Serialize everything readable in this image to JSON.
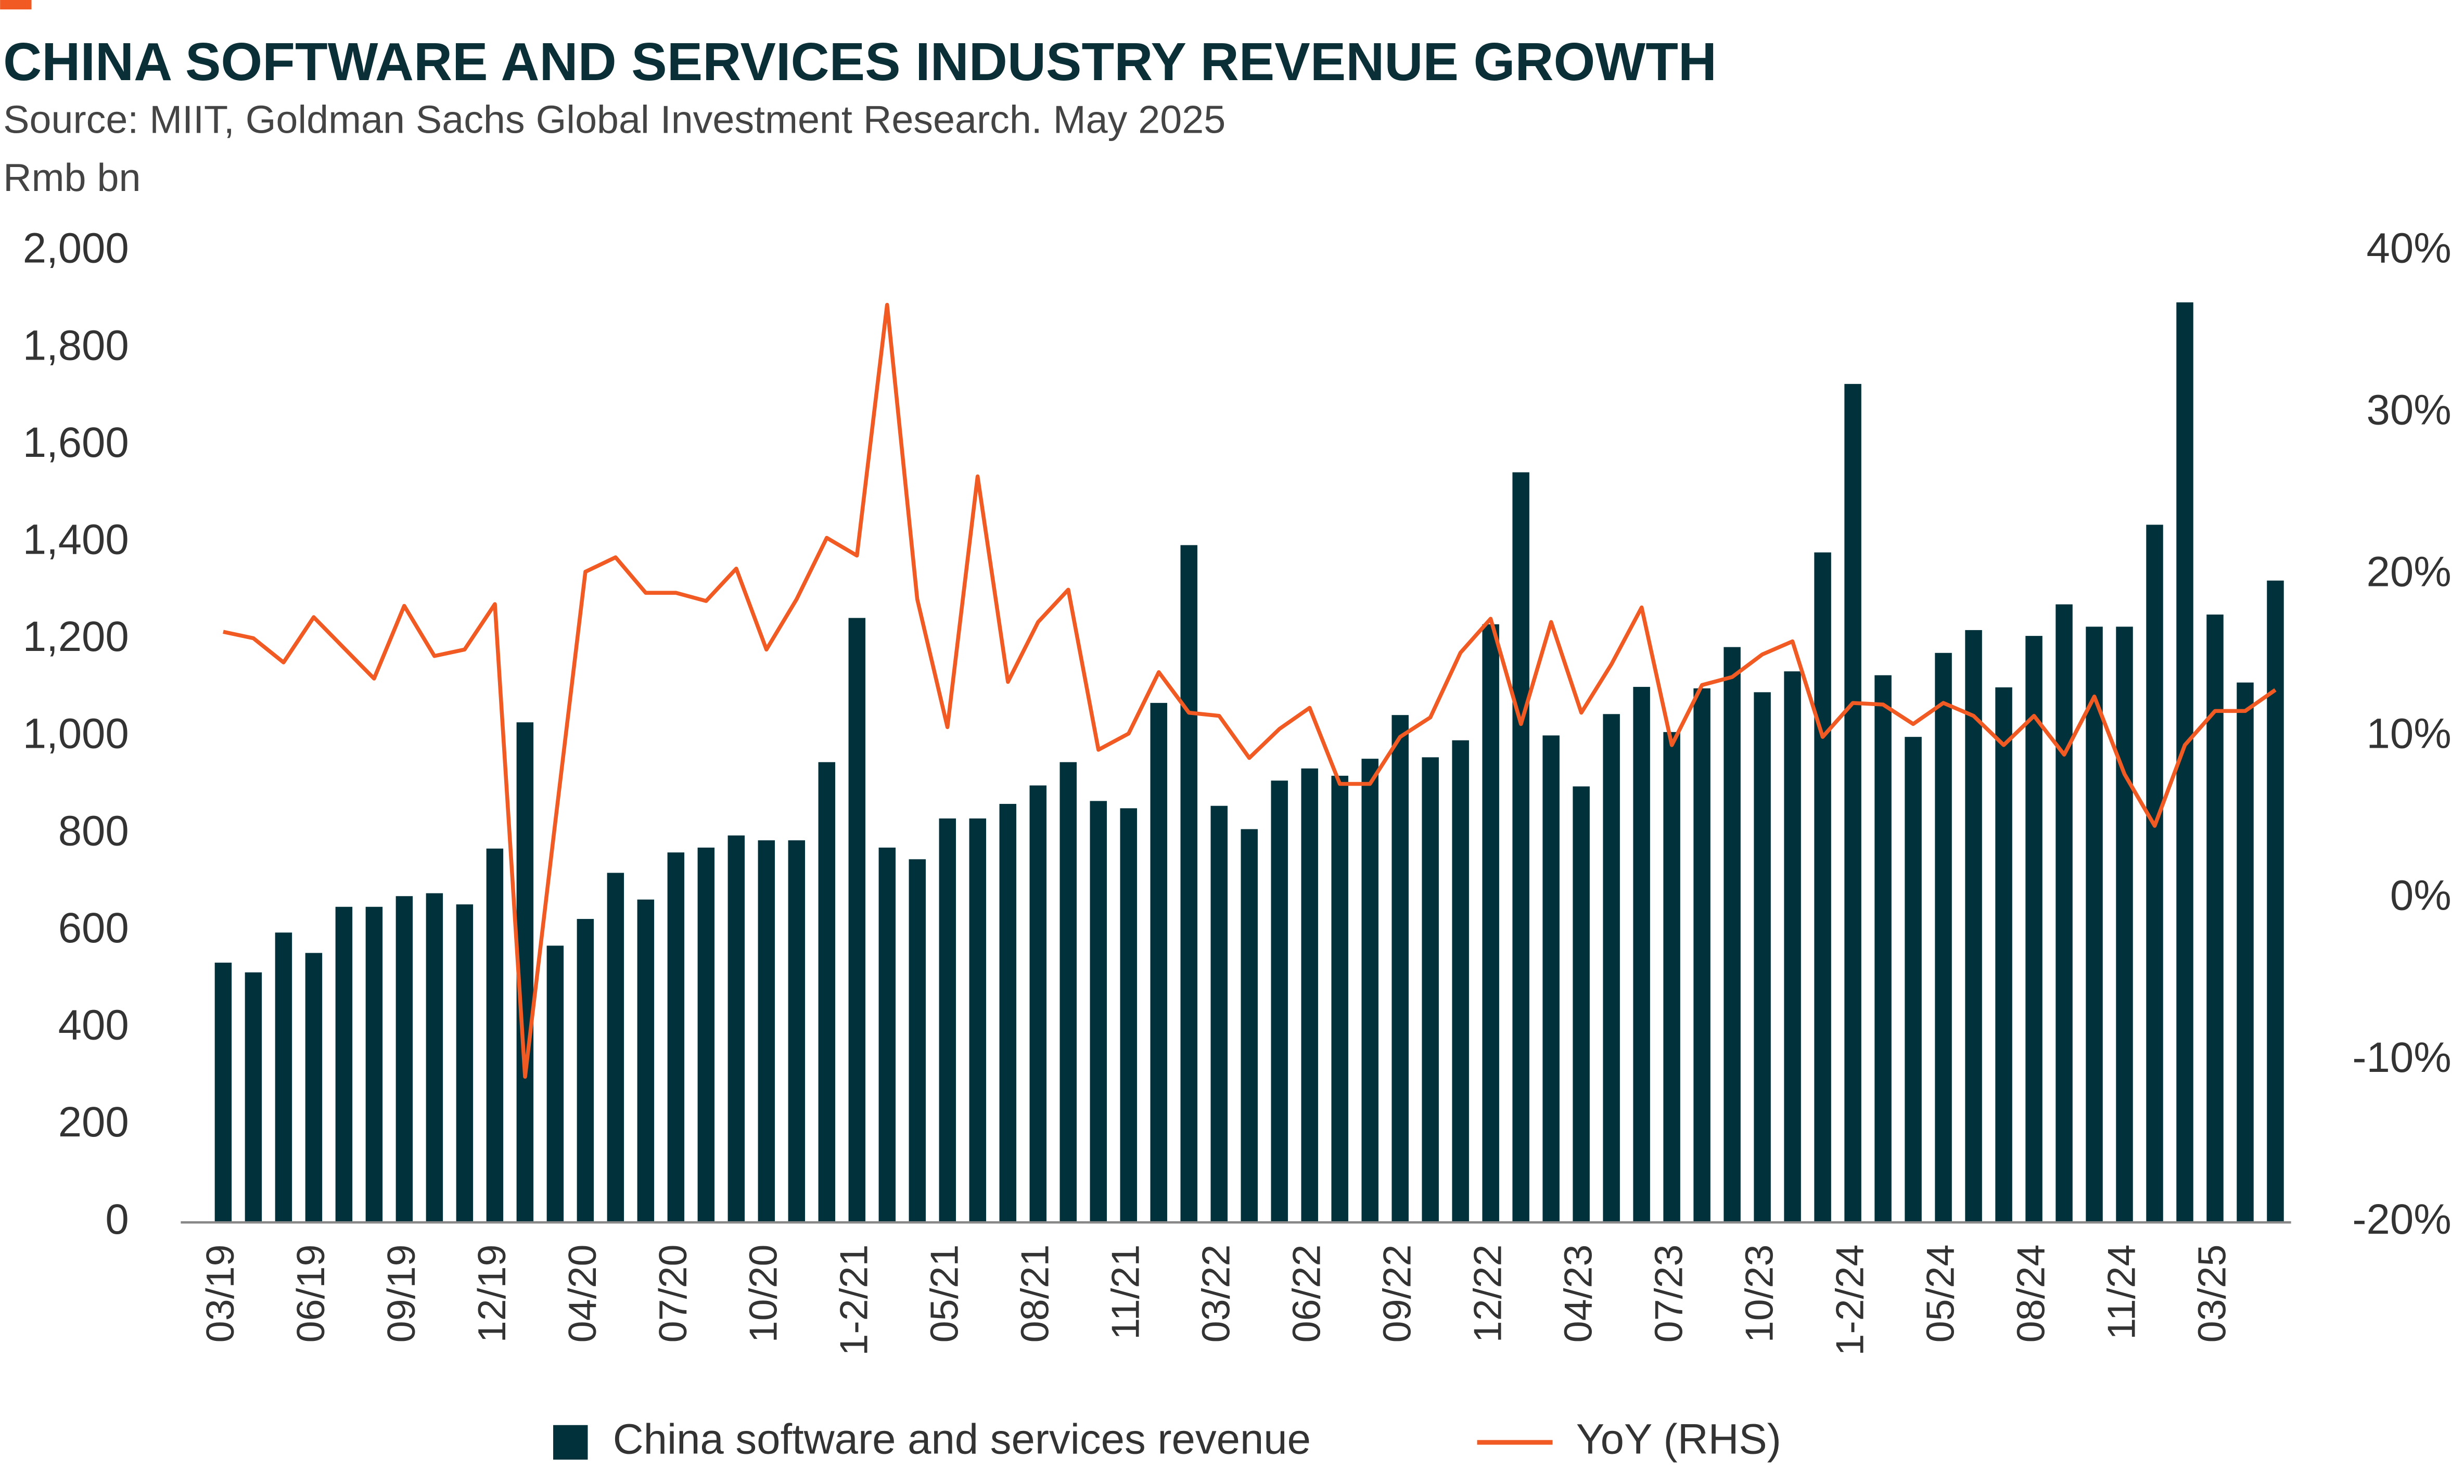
{
  "chart_data": {
    "type": "bar-line",
    "title": "CHINA SOFTWARE AND SERVICES INDUSTRY REVENUE GROWTH",
    "subtitle": "Source: MIIT, Goldman Sachs Global Investment Research.  May 2025",
    "y_label": "Rmb bn",
    "categories": [
      "03/19",
      null,
      null,
      "06/19",
      null,
      null,
      "09/19",
      null,
      null,
      "12/19",
      null,
      null,
      "04/20",
      null,
      null,
      "07/20",
      null,
      null,
      "10/20",
      null,
      null,
      "1-2/21",
      null,
      null,
      "05/21",
      null,
      null,
      "08/21",
      null,
      null,
      "11/21",
      null,
      null,
      "03/22",
      null,
      null,
      "06/22",
      null,
      null,
      "09/22",
      null,
      null,
      "12/22",
      null,
      null,
      "04/23",
      null,
      null,
      "07/23",
      null,
      null,
      "10/23",
      null,
      null,
      "1-2/24",
      null,
      null,
      "05/24",
      null,
      null,
      "08/24",
      null,
      null,
      "11/24",
      null,
      null,
      "03/25",
      null,
      null
    ],
    "series": [
      {
        "name": "China software and services revenue",
        "type": "bar",
        "color": "#01313a",
        "values": [
          535,
          515,
          597,
          555,
          650,
          650,
          672,
          678,
          655,
          770,
          1030,
          570,
          625,
          720,
          665,
          762,
          772,
          797,
          787,
          787,
          948,
          1245,
          772,
          748,
          832,
          832,
          862,
          900,
          948,
          868,
          853,
          1070,
          1395,
          858,
          810,
          910,
          935,
          920,
          955,
          1045,
          958,
          993,
          1232,
          1545,
          1003,
          898,
          1047,
          1103,
          1010,
          1100,
          1185,
          1092,
          1135,
          1380,
          1727,
          1127,
          1000,
          1173,
          1220,
          1102,
          1208,
          1273,
          1227,
          1227,
          1437,
          1895,
          1252,
          1112,
          1322
        ]
      },
      {
        "name": "YoY (RHS)",
        "type": "line",
        "axis": "y2",
        "color": "#f15a22",
        "values": [
          16.5,
          16.1,
          14.6,
          17.4,
          15.5,
          13.6,
          18.1,
          15.0,
          15.4,
          18.2,
          -11.0,
          4.7,
          20.2,
          21.1,
          18.9,
          18.9,
          18.4,
          20.4,
          15.4,
          18.5,
          22.3,
          21.2,
          36.7,
          18.5,
          10.6,
          26.1,
          13.4,
          17.1,
          19.1,
          9.2,
          10.2,
          14.0,
          11.5,
          11.3,
          8.7,
          10.5,
          11.8,
          7.1,
          7.1,
          10.0,
          11.2,
          15.2,
          17.3,
          10.8,
          17.1,
          11.5,
          14.5,
          18.0,
          9.5,
          13.2,
          13.7,
          15.1,
          15.9,
          10.0,
          12.1,
          12.0,
          10.8,
          12.1,
          11.3,
          9.5,
          11.3,
          8.9,
          12.5,
          7.7,
          4.5,
          9.5,
          11.6,
          11.6,
          12.9
        ]
      }
    ],
    "ylim": [
      0,
      2000
    ],
    "yticks": [
      0,
      200,
      400,
      600,
      800,
      {
        "value": 1000,
        "label": "1,000"
      },
      {
        "value": 1200,
        "label": "1,200"
      },
      {
        "value": 1400,
        "label": "1,400"
      },
      {
        "value": 1600,
        "label": "1,600"
      },
      {
        "value": 1800,
        "label": "1,800"
      },
      {
        "value": 2000,
        "label": "2,000"
      }
    ],
    "y2lim": [
      -20,
      40
    ],
    "y2ticks": [
      {
        "value": -20,
        "label": "-20%"
      },
      {
        "value": -10,
        "label": "-10%"
      },
      {
        "value": 0,
        "label": "0%"
      },
      {
        "value": 10,
        "label": "10%"
      },
      {
        "value": 20,
        "label": "20%"
      },
      {
        "value": 30,
        "label": "30%"
      },
      {
        "value": 40,
        "label": "40%"
      }
    ],
    "legend": "bottom"
  }
}
